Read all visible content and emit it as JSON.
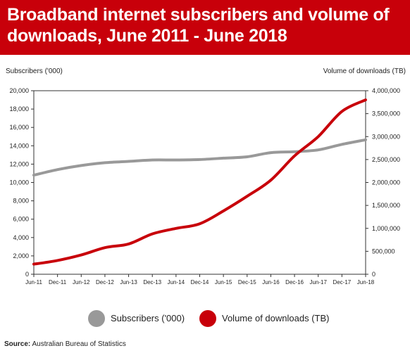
{
  "title": "Broadband internet subscribers and volume of downloads, June 2011 - June 2018",
  "source": {
    "label": "Source:",
    "text": "Australian Bureau of Statistics"
  },
  "chart_data": {
    "type": "line",
    "title": "Broadband internet subscribers and volume of downloads, June 2011 - June 2018",
    "ylabel_left": "Subscribers ('000)",
    "ylabel_right": "Volume of downloads (TB)",
    "xlabel": "",
    "categories": [
      "Jun-11",
      "Dec-11",
      "Jun-12",
      "Dec-12",
      "Jun-13",
      "Dec-13",
      "Jun-14",
      "Dec-14",
      "Jun-15",
      "Dec-15",
      "Jun-16",
      "Dec-16",
      "Jun-17",
      "Dec-17",
      "Jun-18"
    ],
    "ylim_left": [
      0,
      20000
    ],
    "yticks_left": [
      "0",
      "2,000",
      "4,000",
      "6,000",
      "8,000",
      "10,000",
      "12,000",
      "14,000",
      "16,000",
      "18,000",
      "20,000"
    ],
    "ylim_right": [
      0,
      4000000
    ],
    "yticks_right": [
      "0",
      "500,000",
      "1,000,000",
      "1,500,000",
      "2,000,000",
      "2,500,000",
      "3,000,000",
      "3,500,000",
      "4,000,000"
    ],
    "grid": false,
    "legend_position": "bottom",
    "series": [
      {
        "name": "Subscribers ('000)",
        "axis": "left",
        "color": "#999999",
        "values": [
          10800,
          11400,
          11850,
          12150,
          12300,
          12450,
          12450,
          12500,
          12650,
          12800,
          13250,
          13350,
          13550,
          14150,
          14650
        ]
      },
      {
        "name": "Volume of downloads (TB)",
        "axis": "right",
        "color": "#c8000a",
        "values": [
          220000,
          300000,
          420000,
          580000,
          660000,
          880000,
          1000000,
          1100000,
          1380000,
          1700000,
          2050000,
          2580000,
          3000000,
          3550000,
          3800000
        ]
      }
    ]
  }
}
